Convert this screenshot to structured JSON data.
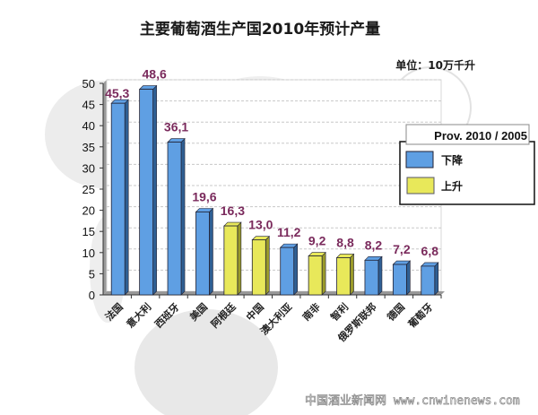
{
  "chart_data": {
    "type": "bar",
    "title": "主要葡萄酒生产国2010年预计产量",
    "unit_label": "单位：10万千升",
    "xlabel": "",
    "ylabel": "",
    "ylim": [
      0,
      50
    ],
    "yticks": [
      "0",
      "5",
      "10",
      "15",
      "20",
      "25",
      "30",
      "35",
      "40",
      "45",
      "50"
    ],
    "grid": true,
    "categories": [
      "法国",
      "意大利",
      "西班牙",
      "美国",
      "阿根廷",
      "中国",
      "澳大利亚",
      "南非",
      "智利",
      "俄罗斯联邦",
      "德国",
      "葡萄牙"
    ],
    "values": [
      45.3,
      48.6,
      36.1,
      19.6,
      16.3,
      13.0,
      11.2,
      9.2,
      8.8,
      8.2,
      7.2,
      6.8
    ],
    "value_labels": [
      "45,3",
      "48,6",
      "36,1",
      "19,6",
      "16,3",
      "13,0",
      "11,2",
      "9,2",
      "8,8",
      "8,2",
      "7,2",
      "6,8"
    ],
    "trend": [
      "down",
      "down",
      "down",
      "down",
      "up",
      "up",
      "down",
      "up",
      "up",
      "down",
      "down",
      "down"
    ],
    "legend": {
      "title": "Prov. 2010 / 2005",
      "placement": "right",
      "entries": [
        {
          "key": "down",
          "label": "下降",
          "color": "#5f9fe3"
        },
        {
          "key": "up",
          "label": "上升",
          "color": "#e8e85a"
        }
      ]
    }
  },
  "colors": {
    "down_bar": "#5f9fe3",
    "down_side": "#2f5f93",
    "up_bar": "#e8e85a",
    "up_side": "#9a9a2a",
    "value_label": "#7a2a5c"
  },
  "watermark": "中国酒业新闻网  www.cnwinenews.com"
}
